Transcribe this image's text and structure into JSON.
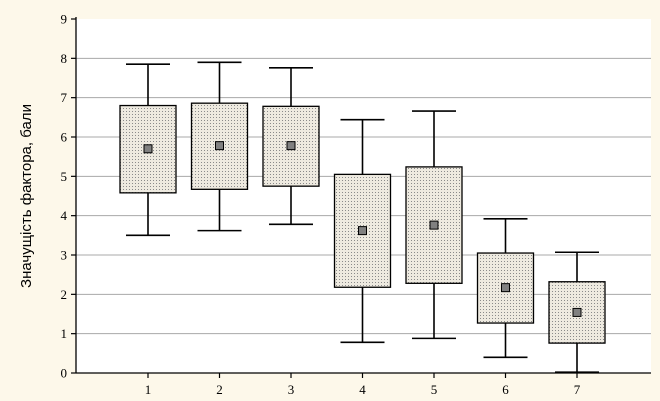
{
  "colors": {
    "background": "#fdf8ea",
    "plot_area": "#ffffff",
    "gridline": "#a8a8a8",
    "box_fill": "#eeeae0",
    "box_dots": "#8a8a8a",
    "median_marker": "#808080",
    "stroke": "#000000"
  },
  "chart_data": {
    "type": "box",
    "title": "",
    "xlabel": "",
    "ylabel": "Значущість фактора, бали",
    "ylim": [
      0,
      9
    ],
    "yticks": [
      "0",
      "1",
      "2",
      "3",
      "4",
      "5",
      "6",
      "7",
      "8",
      "9"
    ],
    "grid": true,
    "categories": [
      "1",
      "2",
      "3",
      "4",
      "5",
      "6",
      "7"
    ],
    "boxes": [
      {
        "category": "1",
        "whisker_low": 3.5,
        "q1": 4.58,
        "median": 5.7,
        "q3": 6.8,
        "whisker_high": 7.85
      },
      {
        "category": "2",
        "whisker_low": 3.62,
        "q1": 4.67,
        "median": 5.78,
        "q3": 6.86,
        "whisker_high": 7.9
      },
      {
        "category": "3",
        "whisker_low": 3.78,
        "q1": 4.75,
        "median": 5.78,
        "q3": 6.78,
        "whisker_high": 7.76
      },
      {
        "category": "4",
        "whisker_low": 0.78,
        "q1": 2.18,
        "median": 3.62,
        "q3": 5.05,
        "whisker_high": 6.44
      },
      {
        "category": "5",
        "whisker_low": 0.88,
        "q1": 2.28,
        "median": 3.76,
        "q3": 5.24,
        "whisker_high": 6.66
      },
      {
        "category": "6",
        "whisker_low": 0.4,
        "q1": 1.27,
        "median": 2.17,
        "q3": 3.05,
        "whisker_high": 3.92
      },
      {
        "category": "7",
        "whisker_low": 0.02,
        "q1": 0.76,
        "median": 1.54,
        "q3": 2.32,
        "whisker_high": 3.07
      }
    ]
  }
}
